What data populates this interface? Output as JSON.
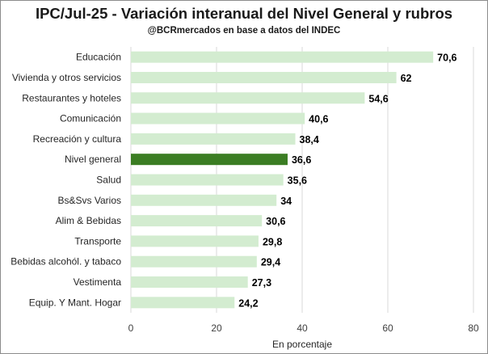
{
  "chart_data": {
    "type": "bar",
    "orientation": "horizontal",
    "title": "IPC/Jul-25 - Variación interanual del Nivel General y rubros",
    "subtitle": "@BCRmercados en base a datos del INDEC",
    "xlabel": "En porcentaje",
    "ylabel": "",
    "xlim": [
      0,
      80
    ],
    "xticks": [
      "0",
      "20",
      "40",
      "60",
      "80"
    ],
    "grid": "vertical",
    "legend": "none",
    "categories": [
      "Educación",
      "Vivienda y otros servicios",
      "Restaurantes y hoteles",
      "Comunicación",
      "Recreación y cultura",
      "Nivel general",
      "Salud",
      "Bs&Svs Varios",
      "Alim & Bebidas",
      "Transporte",
      "Bebidas alcohól. y tabaco",
      "Vestimenta",
      "Equip. Y Mant. Hogar"
    ],
    "values": [
      70.6,
      62,
      54.6,
      40.6,
      38.4,
      36.6,
      35.6,
      34,
      30.6,
      29.8,
      29.4,
      27.3,
      24.2
    ],
    "value_labels": [
      "70,6",
      "62",
      "54,6",
      "40,6",
      "38,4",
      "36,6",
      "35,6",
      "34",
      "30,6",
      "29,8",
      "29,4",
      "27,3",
      "24,2"
    ],
    "highlight_category": "Nivel general",
    "colors": {
      "bar": "#d3ecd0",
      "highlight": "#3b7d23",
      "grid": "#d9d9d9"
    }
  }
}
